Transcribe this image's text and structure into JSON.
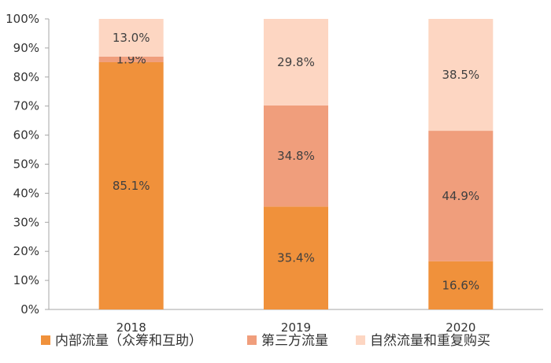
{
  "chart_data": {
    "type": "bar",
    "stacked": true,
    "categories": [
      "2018",
      "2019",
      "2020"
    ],
    "series": [
      {
        "name": "内部流量（众筹和互助）",
        "values": [
          85.1,
          35.4,
          16.6
        ],
        "labels": [
          "85.1%",
          "35.4%",
          "16.6%"
        ],
        "color": "#F0913B"
      },
      {
        "name": "第三方流量",
        "values": [
          1.9,
          34.8,
          44.9
        ],
        "labels": [
          "1.9%",
          "34.8%",
          "44.9%"
        ],
        "color": "#F09E7C"
      },
      {
        "name": "自然流量和重复购买",
        "values": [
          13.0,
          29.8,
          38.5
        ],
        "labels": [
          "13.0%",
          "29.8%",
          "38.5%"
        ],
        "color": "#FDD6C2"
      }
    ],
    "yticks": [
      "0%",
      "10%",
      "20%",
      "30%",
      "40%",
      "50%",
      "60%",
      "70%",
      "80%",
      "90%",
      "100%"
    ],
    "ylim": [
      0,
      100
    ],
    "grid": false,
    "legend_position": "bottom"
  }
}
